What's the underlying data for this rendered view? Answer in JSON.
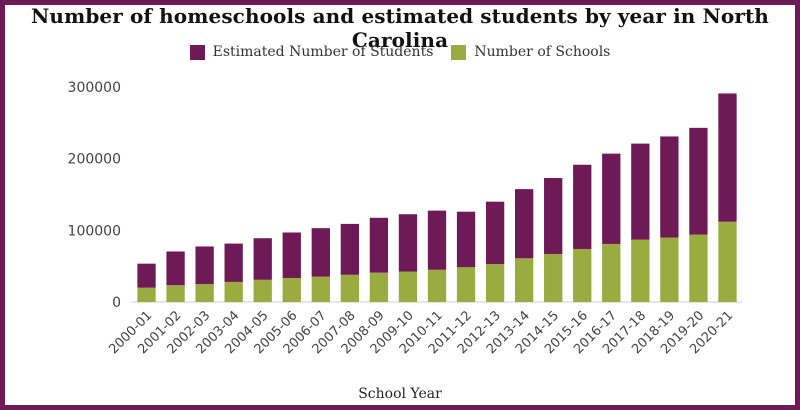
{
  "chart_data": {
    "type": "bar",
    "stacked": true,
    "title": "Number of homeschools and estimated students by year in North Carolina",
    "xlabel": "School Year",
    "ylabel": "",
    "ylim": [
      0,
      300000
    ],
    "yticks": [
      0,
      100000,
      200000,
      300000
    ],
    "legend_position": "top",
    "categories": [
      "2000-01",
      "2001-02",
      "2002-03",
      "2003-04",
      "2004-05",
      "2005-06",
      "2006-07",
      "2007-08",
      "2008-09",
      "2009-10",
      "2010-11",
      "2011-12",
      "2012-13",
      "2013-14",
      "2014-15",
      "2015-16",
      "2016-17",
      "2017-18",
      "2018-19",
      "2019-20",
      "2020-21"
    ],
    "series": [
      {
        "name": "Number of Schools",
        "color": "#9aab3f",
        "values": [
          20000,
          23500,
          25000,
          28000,
          31000,
          33500,
          35500,
          38000,
          41000,
          42500,
          45000,
          48500,
          53000,
          61000,
          67000,
          74000,
          81000,
          87000,
          90000,
          94000,
          112000
        ]
      },
      {
        "name": "Estimated Number of Students",
        "color": "#6e1a56",
        "values": [
          33500,
          47000,
          52500,
          53500,
          58000,
          63500,
          67500,
          71000,
          76500,
          80000,
          82500,
          77500,
          87000,
          96500,
          106000,
          117500,
          126000,
          134000,
          141000,
          149000,
          179000
        ]
      }
    ]
  },
  "legend": {
    "students_label": "Estimated Number of Students",
    "schools_label": "Number of Schools"
  }
}
